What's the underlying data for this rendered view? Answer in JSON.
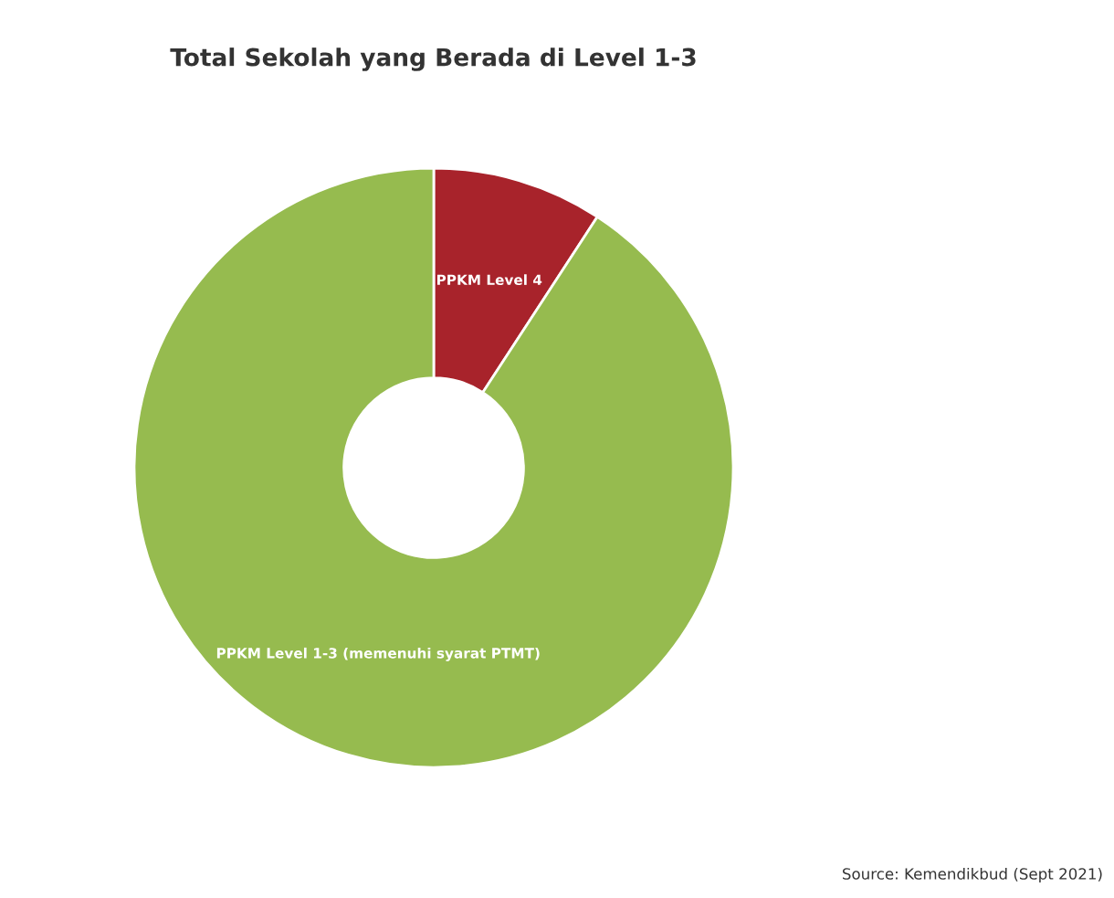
{
  "chart_data": {
    "type": "donut",
    "title": "Total Sekolah yang Berada di Level 1-3",
    "categories": [
      "PPKM Level 4",
      "PPKM Level 1-3 (memenuhi syarat PTMT)"
    ],
    "values": [
      9.2,
      90.8
    ],
    "colors": [
      "#a8232b",
      "#96bb4f"
    ],
    "annotations": [
      "Source: Kemendikbud (Sept 2021)"
    ]
  }
}
